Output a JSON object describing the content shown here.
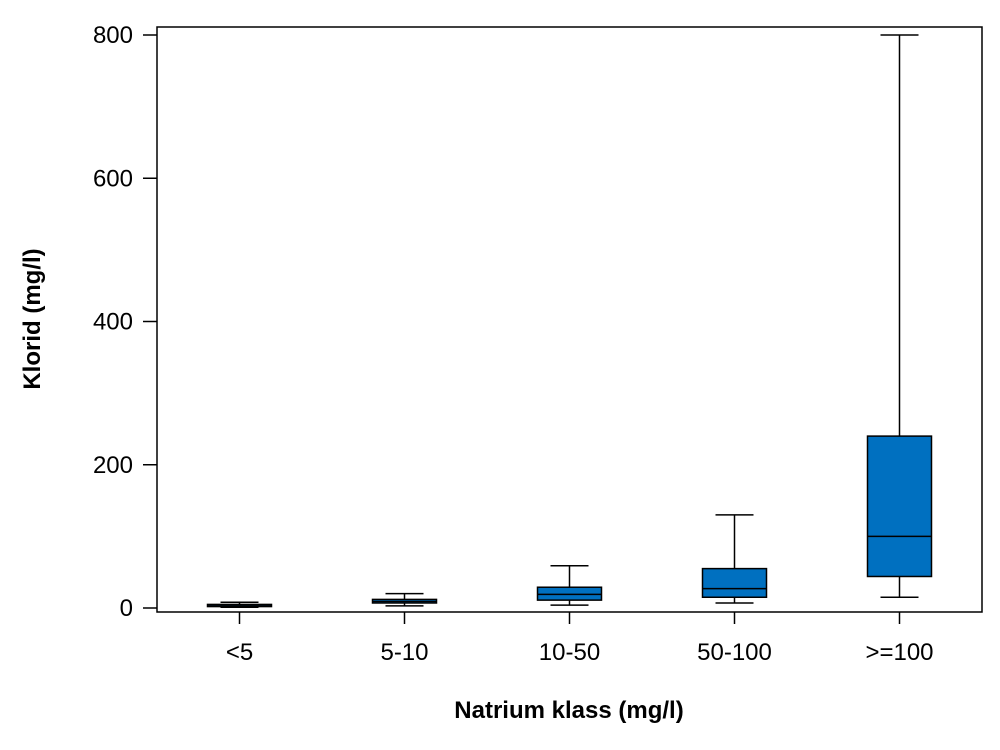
{
  "chart_data": {
    "type": "box",
    "title": "",
    "xlabel": "Natrium klass (mg/l)",
    "ylabel": "Klorid (mg/l)",
    "ylim": [
      -5,
      805
    ],
    "yticks": [
      "0",
      "200",
      "400",
      "600",
      "800"
    ],
    "grid": false,
    "box_color": "#0070C0",
    "categories": [
      "<5",
      "5-10",
      "10-50",
      "50-100",
      ">=100"
    ],
    "boxes": [
      {
        "whisker_low": 1,
        "q1": 2,
        "median": 3,
        "q3": 5,
        "whisker_high": 8
      },
      {
        "whisker_low": 3,
        "q1": 7,
        "median": 9,
        "q3": 12,
        "whisker_high": 20
      },
      {
        "whisker_low": 4,
        "q1": 11,
        "median": 19,
        "q3": 29,
        "whisker_high": 59
      },
      {
        "whisker_low": 7,
        "q1": 15,
        "median": 27,
        "q3": 55,
        "whisker_high": 130
      },
      {
        "whisker_low": 15,
        "q1": 44,
        "median": 100,
        "q3": 240,
        "whisker_high": 800
      }
    ]
  }
}
